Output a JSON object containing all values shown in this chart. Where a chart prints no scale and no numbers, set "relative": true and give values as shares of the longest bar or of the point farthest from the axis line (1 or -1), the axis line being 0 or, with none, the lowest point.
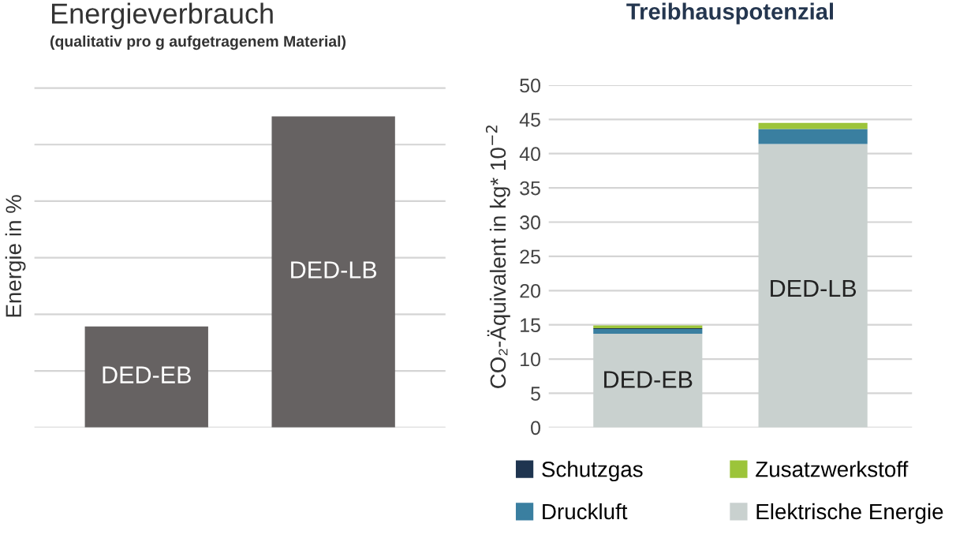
{
  "chart_data": [
    {
      "type": "bar",
      "title": "Energieverbrauch",
      "subtitle": "(qualitativ pro g aufgetragenem Material)",
      "ylabel": "Energie in %",
      "relative": true,
      "grid": "y",
      "tick_labels": false,
      "categories": [
        "DED-EB",
        "DED-LB"
      ],
      "values": [
        0.325,
        1
      ],
      "color": "#666262"
    },
    {
      "type": "bar",
      "title": "Treibhauspotenzial",
      "ylabel": "CO₂-Äquivalent in kg* 10$^{−2}$",
      "stacked": true,
      "grid": "y",
      "legend": "bottom",
      "tick_labels": "y",
      "categories": [
        "DED-EB",
        "DED-LB"
      ],
      "ylim": [
        0,
        50
      ],
      "yticks": [
        0,
        5,
        10,
        15,
        20,
        25,
        30,
        35,
        40,
        45,
        50
      ],
      "series": [
        {
          "name": "Elektrische Energie",
          "color": "#c9d1cf",
          "values": [
            13.7,
            41.4
          ]
        },
        {
          "name": "Druckluft",
          "color": "#3a7fa0",
          "values": [
            0.7,
            2.2
          ]
        },
        {
          "name": "Schutzgas",
          "color": "#1f3550",
          "values": [
            0.1,
            null
          ]
        },
        {
          "name": "Zusatzwerkstoff",
          "color": "#9cc43a",
          "values": [
            0.4,
            0.9
          ]
        }
      ]
    }
  ]
}
